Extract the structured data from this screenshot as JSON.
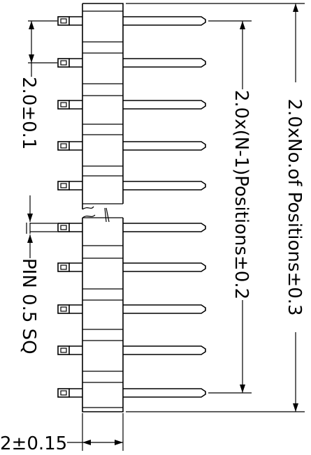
{
  "drawing": {
    "pin_count_shown": 10,
    "dimensions": {
      "pitch": "2.0±0.1",
      "pin_size": "PIN 0.5 SQ",
      "span_n_minus_1": "2.0x(N-1)Positions±0.2",
      "overall_length": "2.0xNo.of Positions±0.3",
      "body_width": "2±0.15"
    }
  }
}
